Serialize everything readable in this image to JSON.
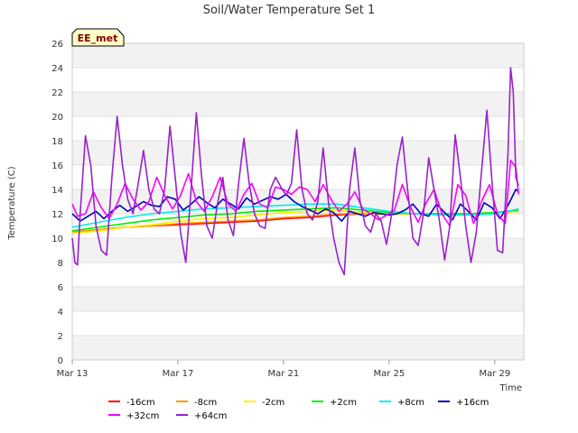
{
  "chart_data": {
    "type": "line",
    "title": "Soil/Water Temperature Set 1",
    "xlabel": "Time",
    "ylabel": "Temperature (C)",
    "badge": "EE_met",
    "xlim": [
      0,
      17.1
    ],
    "ylim": [
      0,
      26
    ],
    "x_ticks": [
      {
        "label": "Mar 13",
        "x": 0
      },
      {
        "label": "Mar 17",
        "x": 4
      },
      {
        "label": "Mar 21",
        "x": 8
      },
      {
        "label": "Mar 25",
        "x": 12
      },
      {
        "label": "Mar 29",
        "x": 16
      }
    ],
    "y_ticks": [
      0,
      2,
      4,
      6,
      8,
      10,
      12,
      14,
      16,
      18,
      20,
      22,
      24,
      26
    ],
    "grid": true,
    "legend_position": "bottom",
    "x_unit": "days since Mar 13",
    "series": [
      {
        "name": "-16cm",
        "color": "#ff0000",
        "x": [
          0,
          1,
          2,
          3,
          4,
          5,
          6,
          7,
          8,
          9,
          10,
          11,
          12,
          13,
          14,
          15,
          16,
          16.9
        ],
        "values": [
          10.5,
          10.7,
          10.9,
          11.0,
          11.1,
          11.2,
          11.3,
          11.4,
          11.6,
          11.7,
          11.9,
          12.0,
          12.0,
          12.0,
          12.0,
          12.0,
          12.1,
          12.2
        ]
      },
      {
        "name": "-8cm",
        "color": "#ff9900",
        "x": [
          0,
          1,
          2,
          3,
          4,
          5,
          6,
          7,
          8,
          9,
          10,
          11,
          12,
          13,
          14,
          15,
          16,
          16.9
        ],
        "values": [
          10.5,
          10.7,
          10.9,
          11.0,
          11.2,
          11.3,
          11.4,
          11.5,
          11.7,
          11.8,
          12.0,
          12.0,
          12.0,
          12.0,
          12.0,
          12.0,
          12.1,
          12.2
        ]
      },
      {
        "name": "-2cm",
        "color": "#ffee00",
        "x": [
          0,
          1,
          2,
          3,
          4,
          5,
          6,
          7,
          8,
          9,
          10,
          11,
          12,
          13,
          14,
          15,
          16,
          16.9
        ],
        "values": [
          10.4,
          10.6,
          10.9,
          11.1,
          11.4,
          11.6,
          11.7,
          11.9,
          12.1,
          12.2,
          12.3,
          12.1,
          12.0,
          12.0,
          12.0,
          12.0,
          12.1,
          12.2
        ]
      },
      {
        "name": "+2cm",
        "color": "#00ee00",
        "x": [
          0,
          1,
          2,
          3,
          4,
          5,
          6,
          7,
          8,
          9,
          10,
          11,
          12,
          13,
          14,
          15,
          16,
          16.9
        ],
        "values": [
          10.6,
          10.9,
          11.2,
          11.5,
          11.7,
          11.9,
          12.0,
          12.2,
          12.3,
          12.4,
          12.5,
          12.3,
          12.1,
          12.0,
          12.0,
          12.0,
          12.1,
          12.3
        ]
      },
      {
        "name": "+8cm",
        "color": "#00eeee",
        "x": [
          0,
          1,
          2,
          3,
          4,
          5,
          6,
          7,
          8,
          9,
          10,
          11,
          12,
          13,
          14,
          15,
          16,
          16.9
        ],
        "values": [
          10.9,
          11.3,
          11.7,
          12.0,
          12.2,
          12.4,
          12.5,
          12.6,
          12.7,
          12.8,
          12.8,
          12.5,
          12.2,
          12.0,
          11.9,
          11.9,
          12.0,
          12.4
        ]
      },
      {
        "name": "+16cm",
        "color": "#0000bb",
        "x": [
          0,
          0.3,
          0.6,
          0.9,
          1.2,
          1.5,
          1.8,
          2.1,
          2.4,
          2.7,
          3.0,
          3.3,
          3.6,
          3.9,
          4.2,
          4.5,
          4.8,
          5.1,
          5.4,
          5.7,
          6.0,
          6.3,
          6.6,
          6.9,
          7.2,
          7.5,
          7.8,
          8.1,
          8.4,
          8.7,
          9.0,
          9.3,
          9.6,
          9.9,
          10.2,
          10.5,
          10.8,
          11.1,
          11.4,
          11.7,
          12.0,
          12.3,
          12.6,
          12.9,
          13.2,
          13.5,
          13.8,
          14.1,
          14.4,
          14.7,
          15.0,
          15.3,
          15.6,
          15.9,
          16.2,
          16.5,
          16.8,
          16.9
        ],
        "values": [
          12.0,
          11.4,
          11.8,
          12.2,
          11.6,
          12.2,
          12.7,
          12.2,
          12.6,
          13.0,
          12.7,
          12.6,
          13.4,
          13.2,
          12.3,
          12.8,
          13.4,
          12.9,
          12.5,
          13.2,
          12.8,
          12.4,
          13.3,
          12.8,
          13.1,
          13.4,
          13.2,
          13.6,
          13.0,
          12.6,
          12.3,
          12.0,
          12.4,
          12.1,
          11.4,
          12.2,
          12.0,
          11.8,
          12.1,
          12.0,
          11.9,
          12.0,
          12.3,
          12.8,
          12.0,
          11.8,
          12.8,
          12.1,
          11.5,
          12.8,
          12.2,
          11.5,
          12.9,
          12.5,
          11.6,
          12.7,
          14.0,
          13.8
        ]
      },
      {
        "name": "+32cm",
        "color": "#ff00ff",
        "x": [
          0,
          0.2,
          0.5,
          0.8,
          1.1,
          1.4,
          1.7,
          2.0,
          2.3,
          2.6,
          2.9,
          3.2,
          3.5,
          3.8,
          4.1,
          4.4,
          4.7,
          5.0,
          5.3,
          5.6,
          5.9,
          6.2,
          6.5,
          6.8,
          7.1,
          7.4,
          7.7,
          8.0,
          8.3,
          8.6,
          8.9,
          9.2,
          9.5,
          9.8,
          10.1,
          10.4,
          10.7,
          11.0,
          11.3,
          11.6,
          11.9,
          12.2,
          12.5,
          12.8,
          13.1,
          13.4,
          13.7,
          14.0,
          14.3,
          14.6,
          14.9,
          15.2,
          15.5,
          15.8,
          16.1,
          16.4,
          16.6,
          16.8,
          16.9
        ],
        "values": [
          12.8,
          11.8,
          12.0,
          13.8,
          12.5,
          11.6,
          12.8,
          14.5,
          13.2,
          12.3,
          13.0,
          15.0,
          13.5,
          12.4,
          13.5,
          15.3,
          13.0,
          12.2,
          13.4,
          15.0,
          12.8,
          12.2,
          13.6,
          14.5,
          12.8,
          12.5,
          14.2,
          14.0,
          13.6,
          14.2,
          14.0,
          13.0,
          14.4,
          13.2,
          12.2,
          12.8,
          13.8,
          12.4,
          12.0,
          11.5,
          11.9,
          12.3,
          14.4,
          12.6,
          11.3,
          12.9,
          14.0,
          12.0,
          11.0,
          14.4,
          13.5,
          11.2,
          13.0,
          14.4,
          12.0,
          11.2,
          16.4,
          15.8,
          13.6
        ]
      },
      {
        "name": "+64cm",
        "color": "#9922cc",
        "x": [
          0,
          0.1,
          0.2,
          0.3,
          0.5,
          0.7,
          0.9,
          1.1,
          1.3,
          1.5,
          1.7,
          1.9,
          2.1,
          2.3,
          2.5,
          2.7,
          2.9,
          3.1,
          3.3,
          3.5,
          3.7,
          3.9,
          4.1,
          4.3,
          4.5,
          4.7,
          4.9,
          5.1,
          5.3,
          5.5,
          5.7,
          5.9,
          6.1,
          6.3,
          6.5,
          6.7,
          6.9,
          7.1,
          7.3,
          7.5,
          7.7,
          7.9,
          8.1,
          8.3,
          8.5,
          8.7,
          8.9,
          9.1,
          9.3,
          9.5,
          9.7,
          9.9,
          10.1,
          10.3,
          10.5,
          10.7,
          10.9,
          11.1,
          11.3,
          11.5,
          11.7,
          11.9,
          12.1,
          12.3,
          12.5,
          12.7,
          12.9,
          13.1,
          13.3,
          13.5,
          13.7,
          13.9,
          14.1,
          14.3,
          14.5,
          14.7,
          14.9,
          15.1,
          15.3,
          15.5,
          15.7,
          15.9,
          16.1,
          16.3,
          16.5,
          16.6,
          16.7,
          16.8,
          16.9
        ],
        "values": [
          10.0,
          8.0,
          7.8,
          12.0,
          18.4,
          16.0,
          11.0,
          9.0,
          8.6,
          15.0,
          20.0,
          16.0,
          13.2,
          12.0,
          14.5,
          17.2,
          14.0,
          12.4,
          12.0,
          14.0,
          19.2,
          15.0,
          10.5,
          8.0,
          14.0,
          20.3,
          15.0,
          11.0,
          10.0,
          12.8,
          15.0,
          11.5,
          10.2,
          14.5,
          18.2,
          14.5,
          12.0,
          11.0,
          10.8,
          14.0,
          15.0,
          14.2,
          13.5,
          14.5,
          18.9,
          14.0,
          12.0,
          11.5,
          13.0,
          17.4,
          13.0,
          10.0,
          8.0,
          7.0,
          14.0,
          17.4,
          13.0,
          11.0,
          10.5,
          12.0,
          11.4,
          9.5,
          12.0,
          16.0,
          18.3,
          14.0,
          10.0,
          9.4,
          12.0,
          16.6,
          14.0,
          11.5,
          8.2,
          11.0,
          18.5,
          15.0,
          11.0,
          8.0,
          10.5,
          15.5,
          20.5,
          14.5,
          9.0,
          8.8,
          17.0,
          24.0,
          22.0,
          15.0,
          14.3
        ]
      }
    ]
  }
}
